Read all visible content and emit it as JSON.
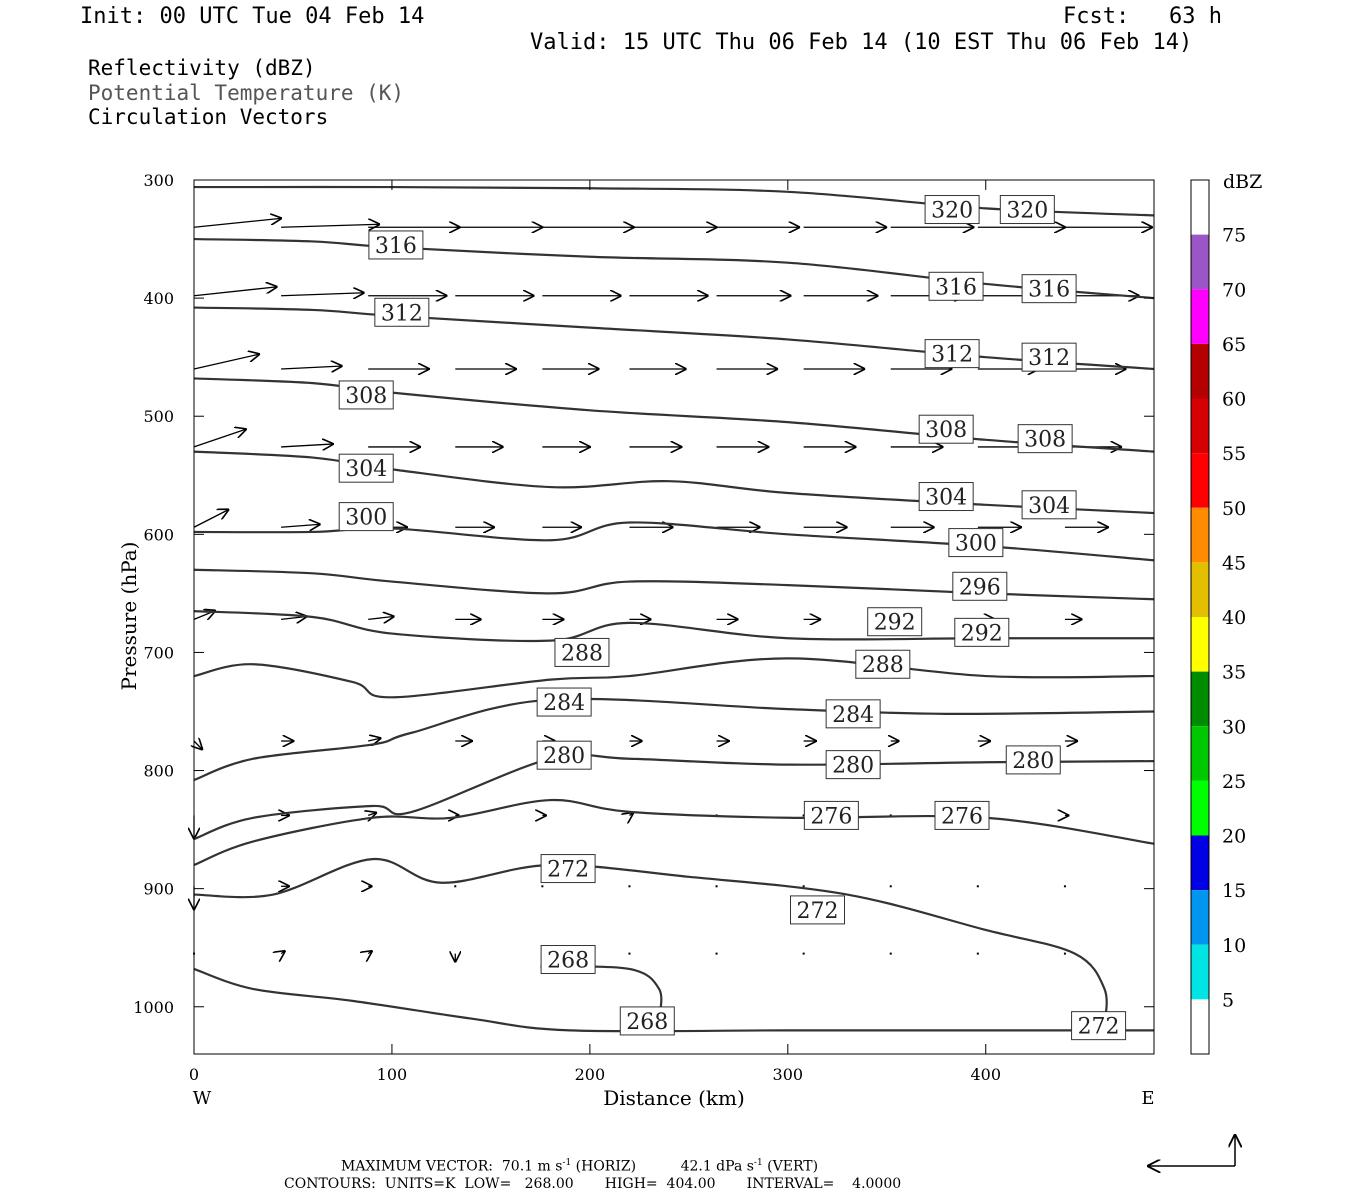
{
  "header": {
    "init": "Init: 00 UTC Tue 04 Feb 14",
    "fcst": "Fcst:   63 h",
    "valid": "Valid: 15 UTC Thu 06 Feb 14 (10 EST Thu 06 Feb 14)"
  },
  "fields": [
    {
      "label": "Reflectivity (dBZ)",
      "color": "#000000"
    },
    {
      "label": "Potential Temperature (K)",
      "color": "#555555"
    },
    {
      "label": "Circulation Vectors",
      "color": "#000000"
    }
  ],
  "chart_data": {
    "type": "cross-section",
    "xlabel": "Distance (km)",
    "ylabel": "Pressure (hPa)",
    "x_range": [
      0,
      485
    ],
    "y_range": [
      300,
      1040
    ],
    "y_scale": "linear-reversed",
    "x_ticks": [
      0,
      100,
      200,
      300,
      400
    ],
    "y_ticks": [
      300,
      400,
      500,
      600,
      700,
      800,
      900,
      1000
    ],
    "x_left_label": "W",
    "x_right_label": "E",
    "isentropes": [
      {
        "theta": 320,
        "pts": [
          [
            0,
            306
          ],
          [
            100,
            306
          ],
          [
            200,
            307
          ],
          [
            300,
            310
          ],
          [
            400,
            324
          ],
          [
            485,
            330
          ]
        ],
        "labels": [
          [
            383,
            325
          ],
          [
            421,
            325
          ]
        ]
      },
      {
        "theta": 316,
        "pts": [
          [
            0,
            350
          ],
          [
            60,
            352
          ],
          [
            100,
            357
          ],
          [
            200,
            365
          ],
          [
            300,
            370
          ],
          [
            400,
            388
          ],
          [
            485,
            400
          ]
        ],
        "labels": [
          [
            102,
            355
          ],
          [
            385,
            390
          ],
          [
            432,
            392
          ]
        ]
      },
      {
        "theta": 312,
        "pts": [
          [
            0,
            408
          ],
          [
            60,
            410
          ],
          [
            100,
            415
          ],
          [
            200,
            425
          ],
          [
            300,
            435
          ],
          [
            400,
            450
          ],
          [
            485,
            460
          ]
        ],
        "labels": [
          [
            105,
            412
          ],
          [
            383,
            447
          ],
          [
            432,
            450
          ]
        ]
      },
      {
        "theta": 308,
        "pts": [
          [
            0,
            468
          ],
          [
            60,
            472
          ],
          [
            100,
            480
          ],
          [
            200,
            495
          ],
          [
            300,
            505
          ],
          [
            400,
            520
          ],
          [
            485,
            530
          ]
        ],
        "labels": [
          [
            87,
            482
          ],
          [
            380,
            511
          ],
          [
            430,
            519
          ]
        ]
      },
      {
        "theta": 304,
        "pts": [
          [
            0,
            530
          ],
          [
            60,
            535
          ],
          [
            100,
            545
          ],
          [
            180,
            560
          ],
          [
            240,
            555
          ],
          [
            300,
            565
          ],
          [
            400,
            575
          ],
          [
            485,
            582
          ]
        ],
        "labels": [
          [
            87,
            544
          ],
          [
            380,
            568
          ],
          [
            432,
            575
          ]
        ]
      },
      {
        "theta": 300,
        "pts": [
          [
            0,
            598
          ],
          [
            60,
            598
          ],
          [
            100,
            595
          ],
          [
            180,
            605
          ],
          [
            220,
            590
          ],
          [
            300,
            600
          ],
          [
            400,
            610
          ],
          [
            485,
            622
          ]
        ],
        "labels": [
          [
            87,
            585
          ],
          [
            395,
            607
          ]
        ]
      },
      {
        "theta": 296,
        "pts": [
          [
            0,
            630
          ],
          [
            60,
            633
          ],
          [
            100,
            640
          ],
          [
            180,
            650
          ],
          [
            220,
            640
          ],
          [
            300,
            643
          ],
          [
            400,
            650
          ],
          [
            485,
            655
          ]
        ],
        "labels": [
          [
            397,
            644
          ]
        ]
      },
      {
        "theta": 292,
        "pts": [
          [
            0,
            665
          ],
          [
            60,
            670
          ],
          [
            100,
            684
          ],
          [
            180,
            690
          ],
          [
            220,
            675
          ],
          [
            300,
            688
          ],
          [
            400,
            688
          ],
          [
            485,
            688
          ]
        ],
        "labels": [
          [
            354,
            674
          ],
          [
            398,
            683
          ]
        ]
      },
      {
        "theta": 288,
        "pts": [
          [
            0,
            720
          ],
          [
            30,
            710
          ],
          [
            80,
            725
          ],
          [
            100,
            738
          ],
          [
            180,
            723
          ],
          [
            220,
            720
          ],
          [
            300,
            705
          ],
          [
            400,
            720
          ],
          [
            485,
            720
          ]
        ],
        "labels": [
          [
            196,
            700
          ],
          [
            348,
            710
          ]
        ]
      },
      {
        "theta": 284,
        "pts": [
          [
            0,
            808
          ],
          [
            30,
            790
          ],
          [
            90,
            778
          ],
          [
            110,
            768
          ],
          [
            180,
            740
          ],
          [
            300,
            748
          ],
          [
            380,
            752
          ],
          [
            485,
            750
          ]
        ],
        "labels": [
          [
            187,
            742
          ],
          [
            333,
            752
          ]
        ]
      },
      {
        "theta": 280,
        "pts": [
          [
            0,
            858
          ],
          [
            30,
            840
          ],
          [
            90,
            830
          ],
          [
            110,
            835
          ],
          [
            180,
            790
          ],
          [
            220,
            790
          ],
          [
            300,
            795
          ],
          [
            400,
            793
          ],
          [
            485,
            792
          ]
        ],
        "labels": [
          [
            187,
            787
          ],
          [
            333,
            795
          ],
          [
            424,
            791
          ]
        ]
      },
      {
        "theta": 276,
        "pts": [
          [
            0,
            880
          ],
          [
            30,
            860
          ],
          [
            90,
            840
          ],
          [
            130,
            840
          ],
          [
            180,
            825
          ],
          [
            220,
            835
          ],
          [
            300,
            840
          ],
          [
            400,
            840
          ],
          [
            485,
            862
          ]
        ],
        "labels": [
          [
            322,
            838
          ],
          [
            388,
            838
          ]
        ]
      },
      {
        "theta": 272,
        "pts": [
          [
            0,
            905
          ],
          [
            40,
            905
          ],
          [
            90,
            875
          ],
          [
            125,
            895
          ],
          [
            180,
            880
          ],
          [
            250,
            890
          ],
          [
            330,
            905
          ],
          [
            400,
            935
          ],
          [
            445,
            955
          ],
          [
            460,
            985
          ],
          [
            460,
            1015
          ]
        ],
        "labels": [
          [
            189,
            883
          ],
          [
            315,
            918
          ],
          [
            457,
            1016
          ]
        ]
      },
      {
        "theta": 268,
        "pts": [
          [
            0,
            968
          ],
          [
            30,
            985
          ],
          [
            80,
            995
          ],
          [
            140,
            1010
          ],
          [
            190,
            1020
          ],
          [
            300,
            1020
          ],
          [
            400,
            1020
          ],
          [
            485,
            1020
          ]
        ],
        "labels": [
          [
            229,
            1012
          ]
        ]
      },
      {
        "theta": 268,
        "pts": [
          [
            175,
            966
          ],
          [
            220,
            968
          ],
          [
            235,
            985
          ],
          [
            235,
            1010
          ]
        ],
        "labels": [
          [
            189,
            960
          ]
        ]
      }
    ],
    "vector_legend": {
      "max_h": "70.1",
      "max_v": "42.1"
    },
    "colorbar": {
      "unit": "dBZ",
      "levels": [
        5,
        10,
        15,
        20,
        25,
        30,
        35,
        40,
        45,
        50,
        55,
        60,
        65,
        70,
        75
      ],
      "colors": [
        "#ffffff",
        "#00e4e4",
        "#0096f0",
        "#0000e4",
        "#00ff00",
        "#00c800",
        "#008c00",
        "#ffff00",
        "#e4be00",
        "#ff8c00",
        "#ff0000",
        "#d60000",
        "#b40000",
        "#ff00ff",
        "#9a55c7",
        "#ffffff"
      ]
    }
  },
  "footer": {
    "line1": "MAXIMUM VECTOR:  70.1 m s",
    "unit1": "-1",
    "horiz": " (HORIZ)          42.1 dPa s",
    "unit2": "-1",
    "vert": " (VERT)",
    "line2": "CONTOURS:  UNITS=K  LOW=   268.00       HIGH=  404.00       INTERVAL=    4.0000"
  }
}
